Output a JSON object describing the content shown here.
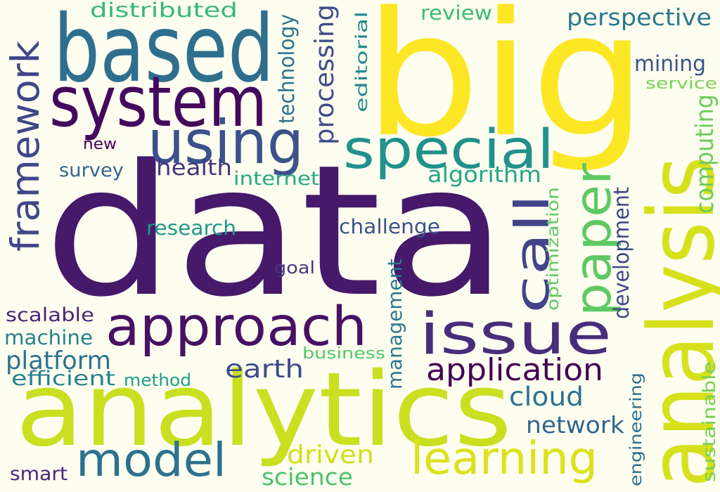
{
  "words": [
    {
      "text": "data",
      "color": "#46196b",
      "vertical": false
    },
    {
      "text": "big",
      "color": "#fde725",
      "vertical": false
    },
    {
      "text": "analytics",
      "color": "#c8e020",
      "vertical": false
    },
    {
      "text": "analysis",
      "color": "#d6e11c",
      "vertical": true
    },
    {
      "text": "based",
      "color": "#2e6f8e",
      "vertical": false
    },
    {
      "text": "system",
      "color": "#44095f",
      "vertical": false
    },
    {
      "text": "using",
      "color": "#3b528b",
      "vertical": false
    },
    {
      "text": "special",
      "color": "#21918c",
      "vertical": false
    },
    {
      "text": "approach",
      "color": "#471164",
      "vertical": false
    },
    {
      "text": "issue",
      "color": "#472d7b",
      "vertical": false
    },
    {
      "text": "model",
      "color": "#2c718e",
      "vertical": false
    },
    {
      "text": "learning",
      "color": "#dbe21b",
      "vertical": false
    },
    {
      "text": "paper",
      "color": "#5ec962",
      "vertical": true
    },
    {
      "text": "call",
      "color": "#414487",
      "vertical": true
    },
    {
      "text": "framework",
      "color": "#404688",
      "vertical": true
    },
    {
      "text": "application",
      "color": "#440154",
      "vertical": false
    },
    {
      "text": "earth",
      "color": "#3e4a89",
      "vertical": false
    },
    {
      "text": "cloud",
      "color": "#2c728e",
      "vertical": false
    },
    {
      "text": "network",
      "color": "#31668e",
      "vertical": false
    },
    {
      "text": "platform",
      "color": "#2c728e",
      "vertical": false
    },
    {
      "text": "perspective",
      "color": "#2a788e",
      "vertical": false
    },
    {
      "text": "processing",
      "color": "#3e4c8a",
      "vertical": true
    },
    {
      "text": "algorithm",
      "color": "#22a785",
      "vertical": false
    },
    {
      "text": "health",
      "color": "#463480",
      "vertical": false
    },
    {
      "text": "computing",
      "color": "#6ccd5a",
      "vertical": true
    },
    {
      "text": "mining",
      "color": "#3a538b",
      "vertical": false
    },
    {
      "text": "management",
      "color": "#2a788e",
      "vertical": true
    },
    {
      "text": "driven",
      "color": "#d0e11c",
      "vertical": false
    },
    {
      "text": "science",
      "color": "#4cc26c",
      "vertical": false
    },
    {
      "text": "distributed",
      "color": "#37b878",
      "vertical": false
    },
    {
      "text": "technology",
      "color": "#2c728e",
      "vertical": true
    },
    {
      "text": "development",
      "color": "#3f4889",
      "vertical": true
    },
    {
      "text": "machine",
      "color": "#26828e",
      "vertical": false
    },
    {
      "text": "efficient",
      "color": "#26828e",
      "vertical": false
    },
    {
      "text": "challenge",
      "color": "#3b528b",
      "vertical": false
    },
    {
      "text": "research",
      "color": "#1f9a8a",
      "vertical": false
    },
    {
      "text": "survey",
      "color": "#31688e",
      "vertical": false
    },
    {
      "text": "internet",
      "color": "#25ab82",
      "vertical": false
    },
    {
      "text": "scalable",
      "color": "#482576",
      "vertical": false
    },
    {
      "text": "method",
      "color": "#1f9e89",
      "vertical": false
    },
    {
      "text": "review",
      "color": "#3dbc74",
      "vertical": false
    },
    {
      "text": "editorial",
      "color": "#23898e",
      "vertical": true
    },
    {
      "text": "optimization",
      "color": "#5ec962",
      "vertical": true
    },
    {
      "text": "engineering",
      "color": "#2d708e",
      "vertical": true
    },
    {
      "text": "sustainable",
      "color": "#75d054",
      "vertical": true
    },
    {
      "text": "business",
      "color": "#54c568",
      "vertical": false
    },
    {
      "text": "service",
      "color": "#7ad151",
      "vertical": false
    },
    {
      "text": "smart",
      "color": "#482878",
      "vertical": false
    },
    {
      "text": "new",
      "color": "#440154",
      "vertical": false
    },
    {
      "text": "goal",
      "color": "#453781",
      "vertical": false
    }
  ]
}
